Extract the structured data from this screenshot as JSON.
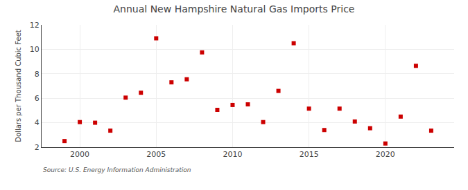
{
  "chart_data": {
    "type": "scatter",
    "title": "Annual New Hampshire Natural Gas Imports Price",
    "ylabel": "Dollars per Thousand Cubic Feet",
    "source": "Source: U.S. Energy Information Administration",
    "x": [
      1999,
      2000,
      2001,
      2002,
      2003,
      2004,
      2005,
      2006,
      2007,
      2008,
      2009,
      2010,
      2011,
      2012,
      2013,
      2014,
      2015,
      2016,
      2017,
      2018,
      2019,
      2020,
      2021,
      2022,
      2023
    ],
    "values": [
      2.5,
      4.05,
      4.0,
      3.35,
      6.05,
      6.45,
      10.9,
      7.3,
      7.55,
      9.75,
      5.05,
      5.45,
      5.5,
      4.05,
      6.6,
      10.5,
      5.15,
      3.4,
      5.15,
      4.1,
      3.55,
      2.3,
      4.5,
      8.65,
      3.35
    ],
    "color": "#cc0000",
    "marker": "square",
    "xlim": [
      1997.5,
      2024.5
    ],
    "ylim": [
      2,
      12
    ],
    "xticks": [
      2000,
      2005,
      2010,
      2015,
      2020
    ],
    "yticks": [
      2,
      4,
      6,
      8,
      10,
      12
    ],
    "grid": true
  }
}
